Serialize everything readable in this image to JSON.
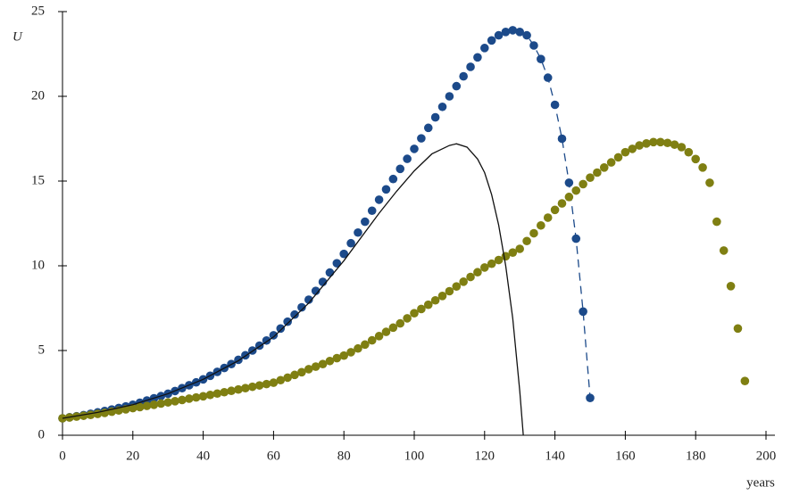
{
  "chart_data": {
    "type": "scatter",
    "x_label": "years",
    "y_label": "U",
    "xlim": [
      0,
      200
    ],
    "ylim": [
      0,
      25
    ],
    "xticks": [
      0,
      20,
      40,
      60,
      80,
      100,
      120,
      140,
      160,
      180,
      200
    ],
    "yticks": [
      0,
      5,
      10,
      15,
      20,
      25
    ],
    "series": [
      {
        "style": "dots",
        "color": "#1c4a8a",
        "x": [
          0,
          2,
          4,
          6,
          8,
          10,
          12,
          14,
          16,
          18,
          20,
          22,
          24,
          26,
          28,
          30,
          32,
          34,
          36,
          38,
          40,
          42,
          44,
          46,
          48,
          50,
          52,
          54,
          56,
          58,
          60,
          62,
          64,
          66,
          68,
          70,
          72,
          74,
          76,
          78,
          80,
          82,
          84,
          86,
          88,
          90,
          92,
          94,
          96,
          98,
          100,
          102,
          104,
          106,
          108,
          110,
          112,
          114,
          116,
          118,
          120,
          122,
          124,
          126,
          128,
          130,
          132,
          134,
          136,
          138,
          140,
          142,
          144,
          146,
          148,
          150
        ],
        "values": [
          1.0,
          1.06,
          1.12,
          1.19,
          1.27,
          1.35,
          1.43,
          1.52,
          1.61,
          1.7,
          1.8,
          1.92,
          2.05,
          2.18,
          2.31,
          2.45,
          2.61,
          2.78,
          2.95,
          3.12,
          3.3,
          3.51,
          3.74,
          3.97,
          4.2,
          4.45,
          4.72,
          5.0,
          5.29,
          5.59,
          5.9,
          6.3,
          6.7,
          7.12,
          7.55,
          8.0,
          8.52,
          9.05,
          9.6,
          10.15,
          10.7,
          11.33,
          11.96,
          12.6,
          13.25,
          13.9,
          14.51,
          15.12,
          15.72,
          16.31,
          16.9,
          17.52,
          18.14,
          18.76,
          19.38,
          20.0,
          20.6,
          21.18,
          21.74,
          22.3,
          22.85,
          23.3,
          23.6,
          23.8,
          23.9,
          23.8,
          23.6,
          23.0,
          22.2,
          21.1,
          19.5,
          17.5,
          14.9,
          11.6,
          7.3,
          2.2
        ]
      },
      {
        "style": "dashed",
        "color": "#1c4a8a",
        "x": [
          126,
          128,
          130,
          132,
          134,
          136,
          138,
          140,
          142,
          144,
          146,
          148,
          150
        ],
        "values": [
          23.8,
          23.9,
          23.8,
          23.6,
          23.0,
          22.2,
          21.1,
          19.5,
          17.5,
          14.9,
          11.6,
          7.3,
          2.2
        ]
      },
      {
        "style": "dots",
        "color": "#7f7f12",
        "x": [
          0,
          2,
          4,
          6,
          8,
          10,
          12,
          14,
          16,
          18,
          20,
          22,
          24,
          26,
          28,
          30,
          32,
          34,
          36,
          38,
          40,
          42,
          44,
          46,
          48,
          50,
          52,
          54,
          56,
          58,
          60,
          62,
          64,
          66,
          68,
          70,
          72,
          74,
          76,
          78,
          80,
          82,
          84,
          86,
          88,
          90,
          92,
          94,
          96,
          98,
          100,
          102,
          104,
          106,
          108,
          110,
          112,
          114,
          116,
          118,
          120,
          122,
          124,
          126,
          128,
          130,
          132,
          134,
          136,
          138,
          140,
          142,
          144,
          146,
          148,
          150,
          152,
          154,
          156,
          158,
          160,
          162,
          164,
          166,
          168,
          170,
          172,
          174,
          176,
          178,
          180,
          182,
          184,
          186,
          188,
          190,
          192,
          194
        ],
        "values": [
          1.0,
          1.05,
          1.1,
          1.15,
          1.2,
          1.26,
          1.32,
          1.39,
          1.46,
          1.53,
          1.6,
          1.66,
          1.73,
          1.8,
          1.87,
          1.94,
          2.01,
          2.08,
          2.16,
          2.23,
          2.3,
          2.38,
          2.46,
          2.54,
          2.62,
          2.7,
          2.78,
          2.86,
          2.94,
          3.02,
          3.1,
          3.25,
          3.4,
          3.56,
          3.72,
          3.9,
          4.05,
          4.2,
          4.38,
          4.55,
          4.7,
          4.9,
          5.12,
          5.35,
          5.6,
          5.85,
          6.1,
          6.35,
          6.6,
          6.9,
          7.2,
          7.45,
          7.7,
          7.96,
          8.22,
          8.5,
          8.78,
          9.06,
          9.34,
          9.62,
          9.9,
          10.12,
          10.34,
          10.56,
          10.78,
          11.0,
          11.46,
          11.92,
          12.38,
          12.84,
          13.3,
          13.68,
          14.06,
          14.44,
          14.82,
          15.2,
          15.5,
          15.8,
          16.1,
          16.4,
          16.7,
          16.9,
          17.1,
          17.22,
          17.3,
          17.3,
          17.25,
          17.15,
          17.0,
          16.7,
          16.3,
          15.8,
          14.9,
          12.6,
          10.9,
          8.8,
          6.3,
          3.2
        ]
      },
      {
        "style": "line",
        "color": "#111111",
        "x": [
          0,
          10,
          20,
          30,
          40,
          50,
          60,
          70,
          80,
          90,
          95,
          100,
          105,
          110,
          112,
          115,
          118,
          120,
          122,
          124,
          126,
          128,
          130,
          131
        ],
        "values": [
          1.0,
          1.35,
          1.8,
          2.45,
          3.3,
          4.4,
          5.8,
          7.8,
          10.3,
          13.1,
          14.4,
          15.6,
          16.6,
          17.1,
          17.2,
          17.0,
          16.3,
          15.5,
          14.2,
          12.4,
          10.0,
          6.9,
          2.6,
          0
        ]
      }
    ]
  }
}
